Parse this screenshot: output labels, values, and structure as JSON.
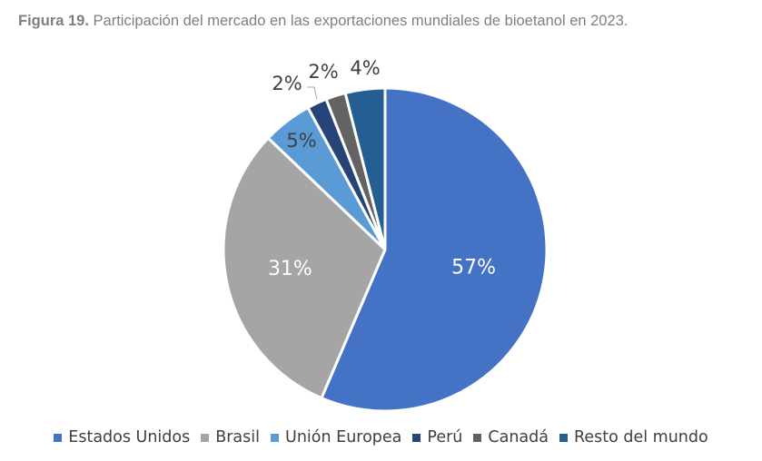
{
  "caption": {
    "figure_label": "Figura 19.",
    "text": "Participación del mercado en las exportaciones mundiales de bioetanol en 2023."
  },
  "chart_data": {
    "type": "pie",
    "title": "",
    "categories": [
      "Estados Unidos",
      "Brasil",
      "Unión Europea",
      "Perú",
      "Canadá",
      "Resto del mundo"
    ],
    "values": [
      57,
      31,
      5,
      2,
      2,
      4
    ],
    "labels": [
      "57%",
      "31%",
      "5%",
      "2%",
      "2%",
      "4%"
    ],
    "colors": [
      "#4472c4",
      "#a5a5a5",
      "#5b9bd5",
      "#264478",
      "#636363",
      "#255e91"
    ],
    "start_angle_deg": 0,
    "direction": "clockwise",
    "legend_position": "bottom"
  }
}
